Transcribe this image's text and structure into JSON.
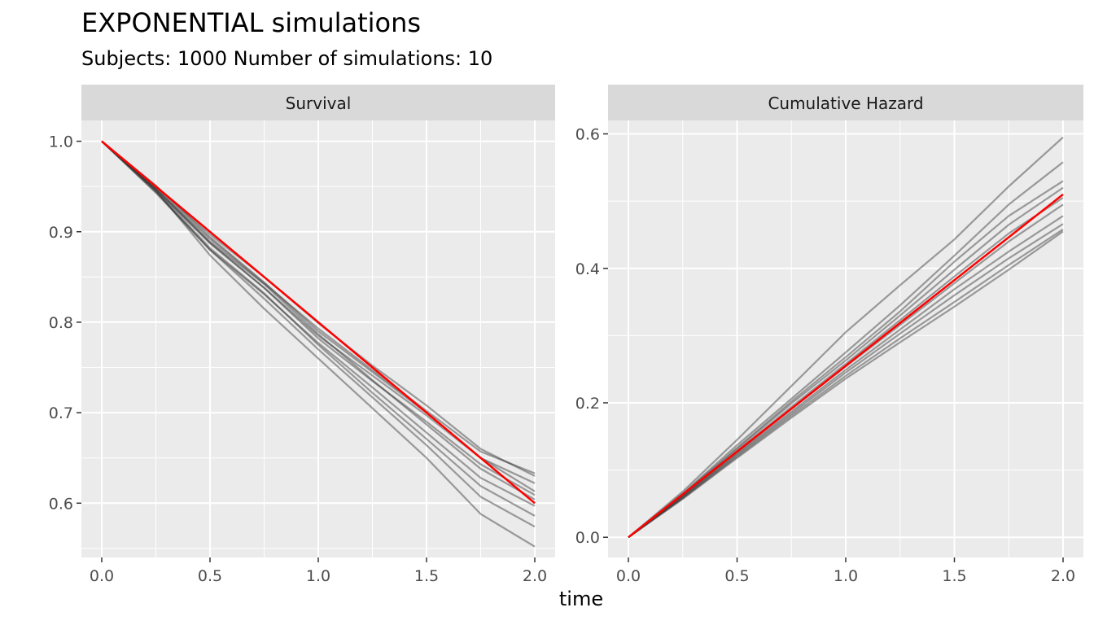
{
  "title": "EXPONENTIAL simulations",
  "subtitle": "Subjects: 1000  Number of simulations: 10",
  "xlabel": "time",
  "colors": {
    "simulation": "#333333",
    "theoretical": "#ff0000",
    "panel_bg": "#ebebeb",
    "strip_bg": "#d9d9d9",
    "grid": "#ffffff"
  },
  "chart_data": [
    {
      "type": "line",
      "panel": "Survival",
      "xlabel": "time",
      "ylabel": "",
      "xlim": [
        0,
        2
      ],
      "ylim": [
        0.54,
        1.023
      ],
      "x_ticks": [
        "0.0",
        "0.5",
        "1.0",
        "1.5",
        "2.0"
      ],
      "y_ticks": [
        "0.6",
        "0.7",
        "0.8",
        "0.9",
        "1.0"
      ],
      "grid": true,
      "theoretical": {
        "x": [
          0,
          0.5,
          1.0,
          1.5,
          2.0
        ],
        "y": [
          1.0,
          0.9,
          0.8,
          0.7,
          0.6
        ]
      },
      "simulations": {
        "x": [
          0,
          0.25,
          0.5,
          0.75,
          1.0,
          1.25,
          1.5,
          1.75,
          2.0
        ],
        "series": [
          [
            1.0,
            0.948,
            0.892,
            0.843,
            0.793,
            0.747,
            0.702,
            0.657,
            0.633
          ],
          [
            1.0,
            0.95,
            0.897,
            0.85,
            0.799,
            0.752,
            0.708,
            0.66,
            0.63
          ],
          [
            1.0,
            0.947,
            0.888,
            0.838,
            0.785,
            0.741,
            0.697,
            0.65,
            0.622
          ],
          [
            1.0,
            0.951,
            0.894,
            0.844,
            0.79,
            0.745,
            0.7,
            0.65,
            0.613
          ],
          [
            1.0,
            0.946,
            0.887,
            0.838,
            0.782,
            0.735,
            0.69,
            0.643,
            0.609
          ],
          [
            1.0,
            0.948,
            0.889,
            0.842,
            0.787,
            0.736,
            0.687,
            0.638,
            0.604
          ],
          [
            1.0,
            0.944,
            0.88,
            0.831,
            0.777,
            0.728,
            0.678,
            0.628,
            0.597
          ],
          [
            1.0,
            0.945,
            0.882,
            0.832,
            0.775,
            0.722,
            0.671,
            0.619,
            0.586
          ],
          [
            1.0,
            0.943,
            0.88,
            0.826,
            0.77,
            0.717,
            0.664,
            0.607,
            0.574
          ],
          [
            1.0,
            0.946,
            0.874,
            0.815,
            0.76,
            0.705,
            0.65,
            0.588,
            0.552
          ]
        ]
      }
    },
    {
      "type": "line",
      "panel": "Cumulative Hazard",
      "xlabel": "time",
      "ylabel": "",
      "xlim": [
        0,
        2
      ],
      "ylim": [
        -0.03,
        0.62
      ],
      "x_ticks": [
        "0.0",
        "0.5",
        "1.0",
        "1.5",
        "2.0"
      ],
      "y_ticks": [
        "0.0",
        "0.2",
        "0.4",
        "0.6"
      ],
      "grid": true,
      "theoretical": {
        "x": [
          0,
          0.5,
          1.0,
          1.5,
          2.0
        ],
        "y": [
          0.0,
          0.1275,
          0.255,
          0.3825,
          0.51
        ]
      },
      "simulations": {
        "x": [
          0,
          0.25,
          0.5,
          0.75,
          1.0,
          1.25,
          1.5,
          1.75,
          2.0
        ],
        "series": [
          [
            0.0,
            0.068,
            0.145,
            0.225,
            0.305,
            0.375,
            0.443,
            0.522,
            0.595
          ],
          [
            0.0,
            0.065,
            0.137,
            0.206,
            0.275,
            0.345,
            0.419,
            0.495,
            0.558
          ],
          [
            0.0,
            0.064,
            0.133,
            0.202,
            0.268,
            0.336,
            0.41,
            0.478,
            0.53
          ],
          [
            0.0,
            0.063,
            0.131,
            0.199,
            0.263,
            0.33,
            0.398,
            0.465,
            0.52
          ],
          [
            0.0,
            0.062,
            0.128,
            0.194,
            0.258,
            0.323,
            0.388,
            0.452,
            0.505
          ],
          [
            0.0,
            0.061,
            0.126,
            0.191,
            0.254,
            0.316,
            0.378,
            0.44,
            0.495
          ],
          [
            0.0,
            0.06,
            0.124,
            0.187,
            0.249,
            0.309,
            0.369,
            0.425,
            0.478
          ],
          [
            0.0,
            0.059,
            0.122,
            0.184,
            0.245,
            0.303,
            0.36,
            0.415,
            0.466
          ],
          [
            0.0,
            0.058,
            0.12,
            0.181,
            0.24,
            0.296,
            0.35,
            0.405,
            0.458
          ],
          [
            0.0,
            0.057,
            0.118,
            0.178,
            0.236,
            0.29,
            0.343,
            0.398,
            0.455
          ]
        ]
      }
    }
  ]
}
